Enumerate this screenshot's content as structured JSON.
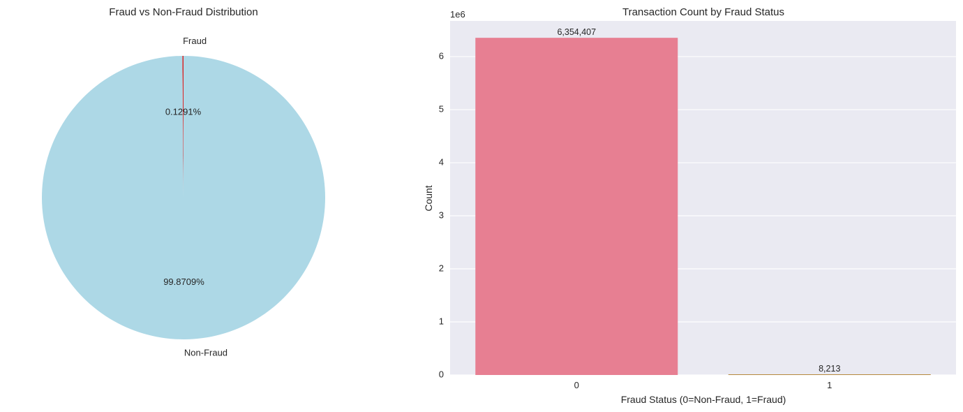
{
  "chart_data": [
    {
      "type": "pie",
      "title": "Fraud vs Non-Fraud Distribution",
      "labels": [
        "Non-Fraud",
        "Fraud"
      ],
      "values": [
        99.8709,
        0.1291
      ],
      "pct_labels": [
        "99.8709%",
        "0.1291%"
      ],
      "colors": [
        "#add8e6",
        "#d62728"
      ],
      "start_angle_deg": 90,
      "direction": "counterclockwise"
    },
    {
      "type": "bar",
      "title": "Transaction Count by Fraud Status",
      "categories": [
        "0",
        "1"
      ],
      "values": [
        6354407,
        8213
      ],
      "data_labels": [
        "6,354,407",
        "8,213"
      ],
      "colors": [
        "#e77f92",
        "#b5893d"
      ],
      "xlabel": "Fraud Status (0=Non-Fraud, 1=Fraud)",
      "ylabel": "Count",
      "ylim": [
        0,
        6672127
      ],
      "y_ticks": [
        0,
        1000000,
        2000000,
        3000000,
        4000000,
        5000000,
        6000000
      ],
      "y_tick_labels": [
        "0",
        "1",
        "2",
        "3",
        "4",
        "5",
        "6"
      ],
      "y_offset_label": "1e6",
      "grid": "horizontal",
      "background": "#eaeaf2"
    }
  ]
}
